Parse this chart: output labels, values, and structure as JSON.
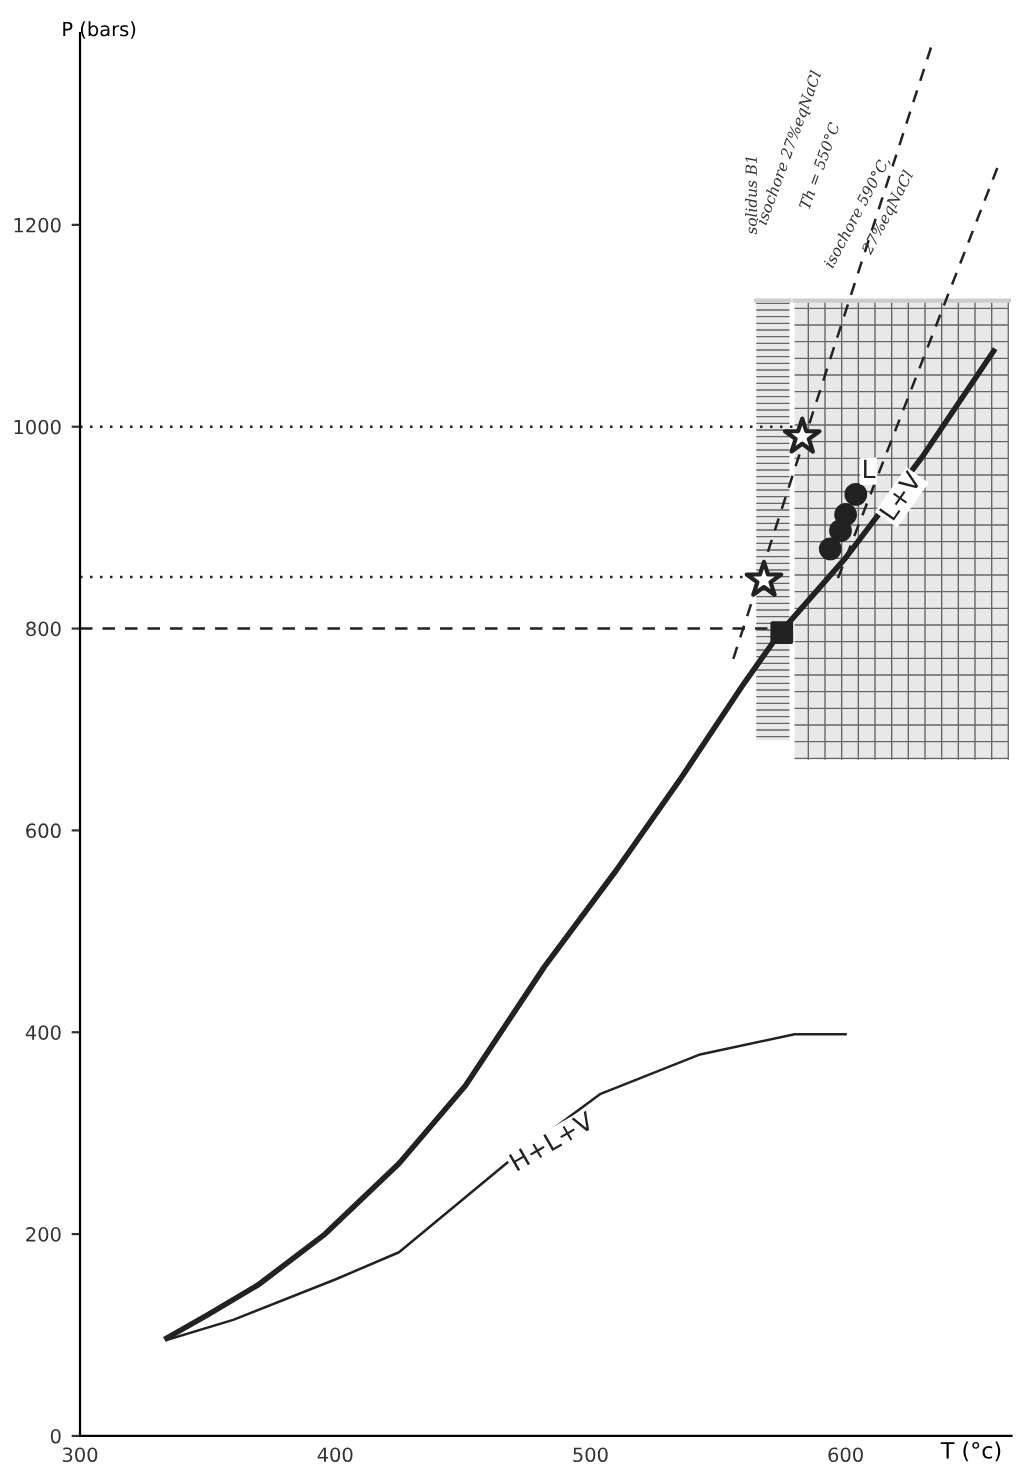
{
  "chart_data": {
    "type": "line",
    "xlabel": "T (°c)",
    "ylabel": "P (bars)",
    "xlim": [
      300,
      665
    ],
    "ylim": [
      0,
      1390
    ],
    "xticks": [
      300,
      400,
      500,
      600
    ],
    "yticks": [
      0,
      200,
      400,
      600,
      800,
      1000,
      1200
    ],
    "grid": false,
    "legend": false,
    "series": [
      {
        "color": "#cccccc",
        "x": [
          565,
          578
        ],
        "lower": [
          689,
          689
        ],
        "upper": [
          1125,
          1125
        ],
        "values": [
          1125,
          1125
        ]
      },
      {
        "color": "#cccccc",
        "x": [
          580,
          664
        ],
        "lower": [
          670,
          670
        ],
        "upper": [
          1125,
          1125
        ],
        "values": [
          1125,
          1125
        ]
      },
      {
        "color": "#222222",
        "line_style": "solid",
        "x": [
          334,
          350,
          370,
          396,
          425,
          451,
          482,
          510,
          535,
          560,
          574,
          600,
          630,
          658
        ],
        "values": [
          97,
          120,
          150,
          200,
          270,
          347,
          465,
          560,
          650,
          745,
          795,
          870,
          970,
          1075
        ]
      },
      {
        "color": "#222222",
        "line_style": "solid",
        "x": [
          334,
          360,
          400,
          425,
          467,
          504,
          543,
          580,
          600
        ],
        "values": [
          95,
          115,
          155,
          182,
          270,
          339,
          378,
          398,
          398
        ]
      },
      {
        "color": "#222222",
        "line_style": "dashed",
        "x": [
          556,
          634
        ],
        "values": [
          770,
          1380
        ]
      },
      {
        "color": "#222222",
        "line_style": "dashed",
        "x": [
          597,
          660
        ],
        "values": [
          850,
          1260
        ]
      },
      {
        "type": "line",
        "color": "#222222",
        "line_style": "dotted",
        "x": [
          300,
          583
        ],
        "values": [
          1000,
          1000
        ]
      },
      {
        "type": "line",
        "color": "#222222",
        "line_style": "dotted",
        "x": [
          300,
          568
        ],
        "values": [
          851,
          851
        ]
      },
      {
        "type": "line",
        "color": "#222222",
        "line_style": "dashed",
        "x": [
          300,
          575
        ],
        "values": [
          800,
          800
        ]
      },
      {
        "type": "scatter",
        "color": "#222222",
        "marker": "star",
        "x": [
          583,
          568
        ],
        "values": [
          990,
          848
        ]
      },
      {
        "type": "scatter",
        "color": "#222222",
        "marker": "square",
        "x": [
          575
        ],
        "values": [
          796
        ]
      },
      {
        "type": "scatter",
        "color": "#222222",
        "marker": "circle",
        "x": [
          594,
          598,
          600,
          604
        ],
        "values": [
          879,
          897,
          913,
          933
        ]
      }
    ],
    "annotations": [
      "solidus B1",
      "isochore 27%eqNaCl",
      "Th = 550°C",
      "isochore 590°C,",
      "27%eqNaCl",
      {
        "text": "L",
        "x": 609,
        "y": 956
      },
      {
        "text": "L+V",
        "x": 622,
        "y": 930
      },
      {
        "text": "H+L+V",
        "x": 485,
        "y": 290
      }
    ]
  }
}
